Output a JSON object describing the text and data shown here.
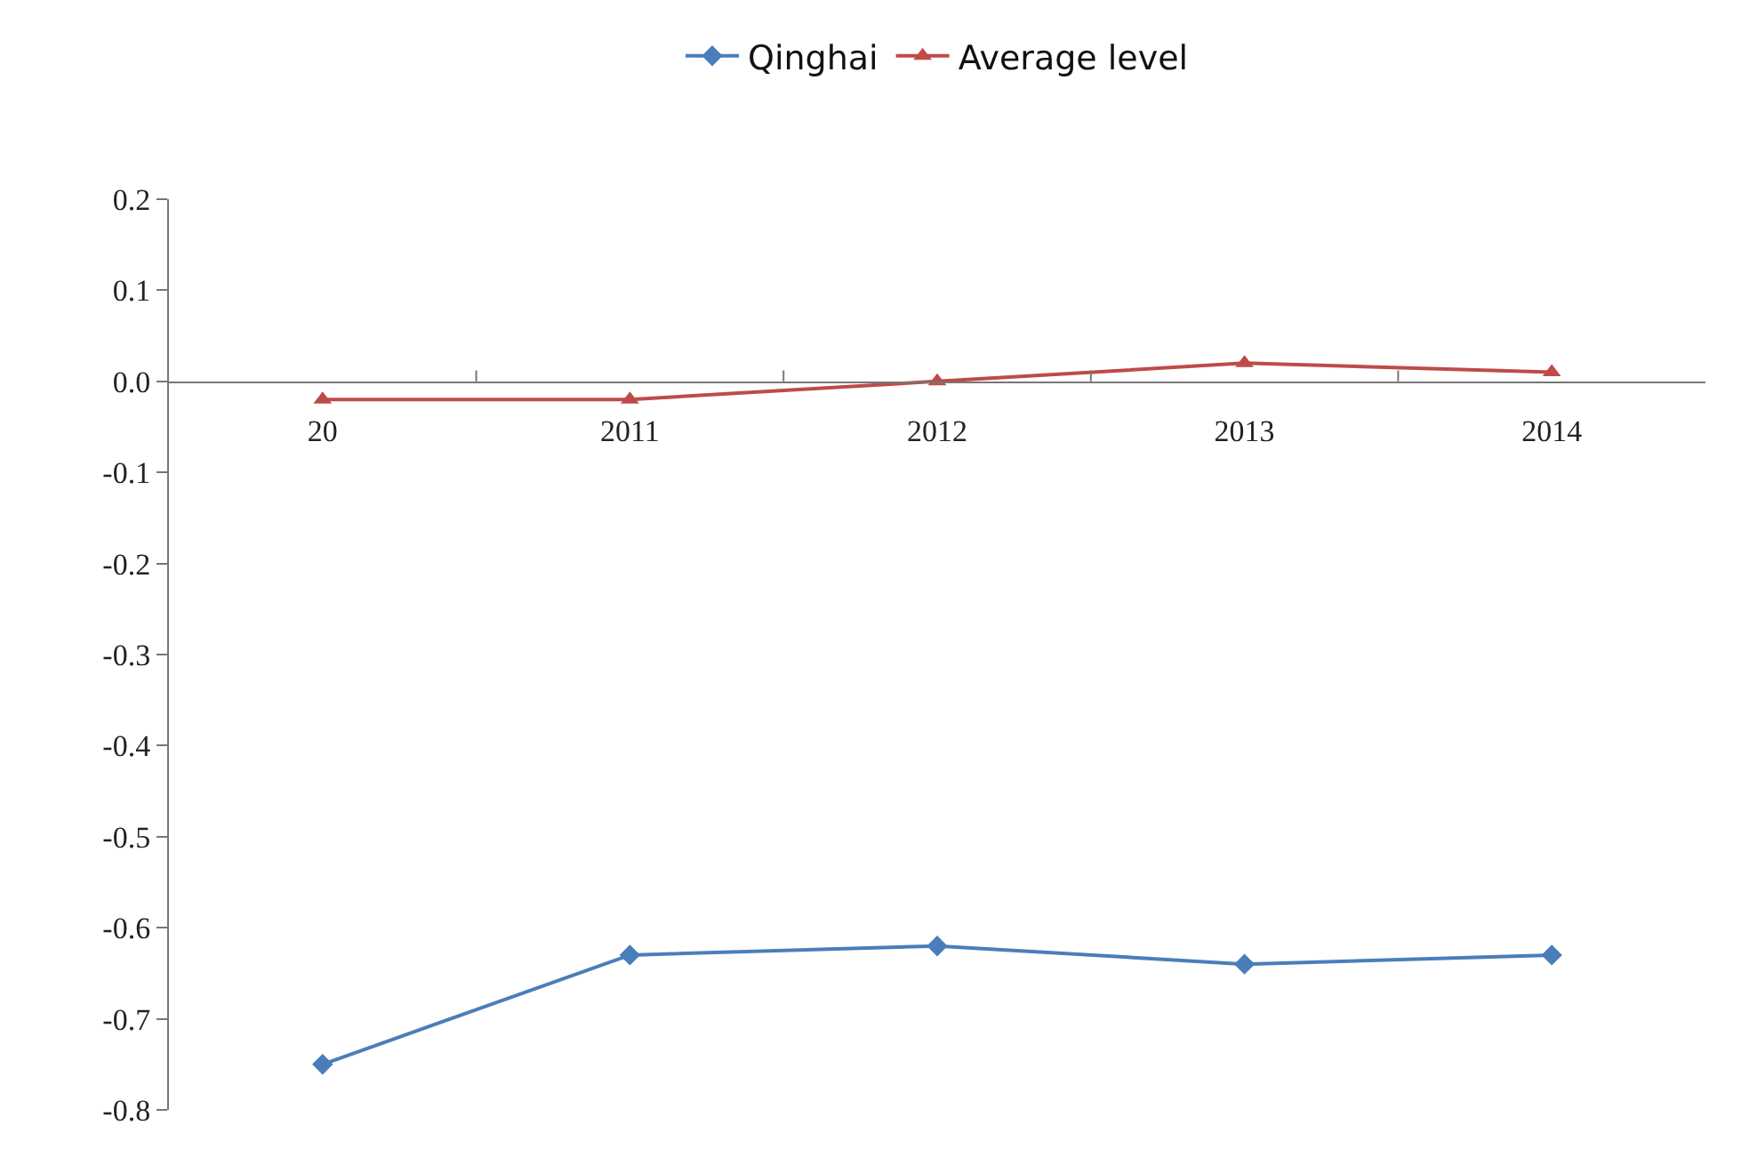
{
  "chart_data": {
    "type": "line",
    "categories": [
      "20",
      "2011",
      "2012",
      "2013",
      "2014"
    ],
    "series": [
      {
        "name": "Qinghai",
        "color": "#4a7ebb",
        "marker": "diamond",
        "values": [
          -0.75,
          -0.63,
          -0.62,
          -0.64,
          -0.63
        ]
      },
      {
        "name": "Average level",
        "color": "#be4b48",
        "marker": "triangle",
        "values": [
          -0.02,
          -0.02,
          0.0,
          0.02,
          0.01
        ]
      }
    ],
    "ylim": [
      -0.8,
      0.2
    ],
    "yticks": [
      -0.8,
      -0.7,
      -0.6,
      -0.5,
      -0.4,
      -0.3,
      -0.2,
      -0.1,
      {
        "value": 0,
        "label": "0.0"
      },
      0.1,
      0.2
    ],
    "legend": "top"
  }
}
